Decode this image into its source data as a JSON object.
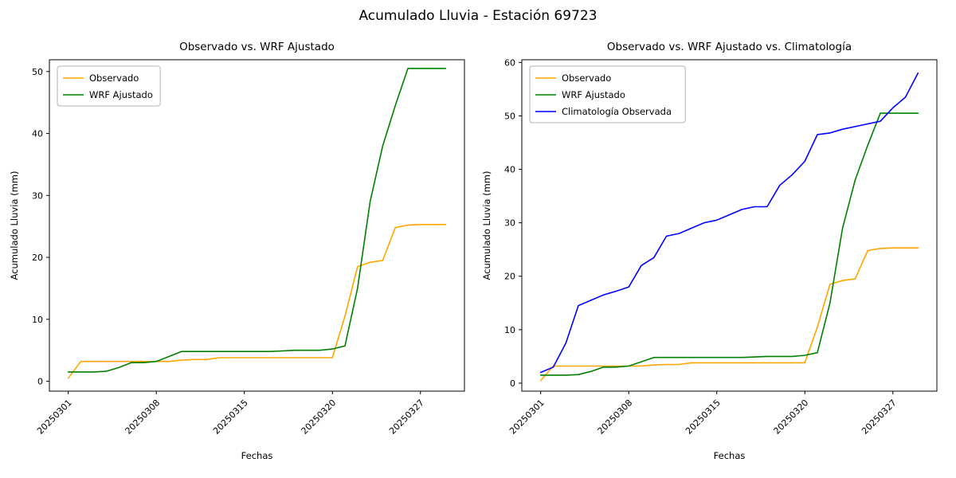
{
  "figure": {
    "suptitle": "Acumulado Lluvia - Estación 69723"
  },
  "colors": {
    "observado": "#ffa500",
    "wrf_ajustado": "#008000",
    "climatologia": "#0000ff",
    "axes": "#000000",
    "legend_border": "#b3b3b3"
  },
  "chart_data": [
    {
      "type": "line",
      "title": "Observado vs. WRF Ajustado",
      "xlabel": "Fechas",
      "ylabel": "Acumulado Lluvia (mm)",
      "grid": false,
      "legend_position": "upper left",
      "xlim": [
        -1.5,
        31.5
      ],
      "ylim": [
        -1.6,
        51.9
      ],
      "y_ticks": [
        0,
        10,
        20,
        30,
        40,
        50
      ],
      "x_ticks": [
        {
          "pos": 0,
          "label": "20250301"
        },
        {
          "pos": 7,
          "label": "20250308"
        },
        {
          "pos": 14,
          "label": "20250315"
        },
        {
          "pos": 21,
          "label": "20250320"
        },
        {
          "pos": 28,
          "label": "20250327"
        }
      ],
      "series": [
        {
          "name": "Observado",
          "color": "#ffa500",
          "values": [
            0.5,
            3.2,
            3.2,
            3.2,
            3.2,
            3.2,
            3.2,
            3.2,
            3.2,
            3.4,
            3.5,
            3.5,
            3.8,
            3.8,
            3.8,
            3.8,
            3.8,
            3.8,
            3.8,
            3.8,
            3.8,
            3.8,
            10.5,
            18.5,
            19.2,
            19.5,
            24.8,
            25.2,
            25.3,
            25.3,
            25.3
          ]
        },
        {
          "name": "WRF Ajustado",
          "color": "#008000",
          "values": [
            1.5,
            1.5,
            1.5,
            1.6,
            2.2,
            3.0,
            3.0,
            3.2,
            4.0,
            4.8,
            4.8,
            4.8,
            4.8,
            4.8,
            4.8,
            4.8,
            4.8,
            4.9,
            5.0,
            5.0,
            5.0,
            5.2,
            5.7,
            15.0,
            29.0,
            38.0,
            44.5,
            50.5,
            50.5,
            50.5,
            50.5
          ]
        }
      ]
    },
    {
      "type": "line",
      "title": "Observado vs. WRF Ajustado vs. Climatología",
      "xlabel": "Fechas",
      "ylabel": "Acumulado Lluvia (mm)",
      "grid": false,
      "legend_position": "upper left",
      "xlim": [
        -1.5,
        31.5
      ],
      "ylim": [
        -1.5,
        60.5
      ],
      "y_ticks": [
        0,
        10,
        20,
        30,
        40,
        50,
        60
      ],
      "x_ticks": [
        {
          "pos": 0,
          "label": "20250301"
        },
        {
          "pos": 7,
          "label": "20250308"
        },
        {
          "pos": 14,
          "label": "20250315"
        },
        {
          "pos": 21,
          "label": "20250320"
        },
        {
          "pos": 28,
          "label": "20250327"
        }
      ],
      "series": [
        {
          "name": "Observado",
          "color": "#ffa500",
          "values": [
            0.5,
            3.2,
            3.2,
            3.2,
            3.2,
            3.2,
            3.2,
            3.2,
            3.2,
            3.4,
            3.5,
            3.5,
            3.8,
            3.8,
            3.8,
            3.8,
            3.8,
            3.8,
            3.8,
            3.8,
            3.8,
            3.8,
            10.5,
            18.5,
            19.2,
            19.5,
            24.8,
            25.2,
            25.3,
            25.3,
            25.3
          ]
        },
        {
          "name": "WRF Ajustado",
          "color": "#008000",
          "values": [
            1.5,
            1.5,
            1.5,
            1.6,
            2.2,
            3.0,
            3.0,
            3.2,
            4.0,
            4.8,
            4.8,
            4.8,
            4.8,
            4.8,
            4.8,
            4.8,
            4.8,
            4.9,
            5.0,
            5.0,
            5.0,
            5.2,
            5.7,
            15.0,
            29.0,
            38.0,
            44.5,
            50.5,
            50.5,
            50.5,
            50.5
          ]
        },
        {
          "name": "Climatología Observada",
          "color": "#0000ff",
          "values": [
            2.0,
            3.0,
            7.5,
            14.5,
            15.5,
            16.5,
            17.2,
            18.0,
            22.0,
            23.5,
            27.5,
            28.0,
            29.0,
            30.0,
            30.5,
            31.5,
            32.5,
            33.0,
            33.0,
            37.0,
            39.0,
            41.5,
            46.5,
            46.8,
            47.5,
            48.0,
            48.5,
            49.0,
            51.5,
            53.5,
            58.0
          ]
        }
      ]
    }
  ]
}
